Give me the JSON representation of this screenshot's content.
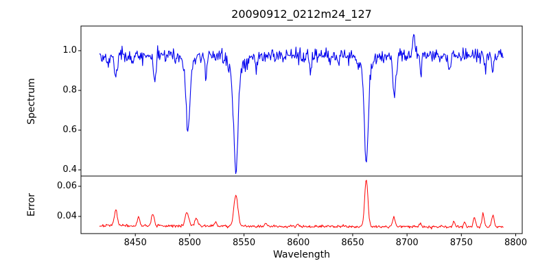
{
  "figure": {
    "title": "20090912_0212m24_127",
    "background": "#ffffff",
    "frame_color": "#000000"
  },
  "chart_data": {
    "type": "line",
    "title": "20090912_0212m24_127",
    "xlabel": "Wavelength",
    "xlim": [
      8400,
      8806
    ],
    "x_ticks": {
      "values": [
        8450,
        8500,
        8550,
        8600,
        8650,
        8700,
        8750,
        8800
      ],
      "labels": [
        "8450",
        "8500",
        "8550",
        "8600",
        "8650",
        "8700",
        "8750",
        "8800"
      ]
    },
    "grid": false,
    "legend": "none",
    "panels": [
      {
        "name": "spectrum",
        "ylabel": "Spectrum",
        "ylim": [
          0.369,
          1.124
        ],
        "y_ticks": {
          "values": [
            0.4,
            0.6,
            0.8,
            1.0
          ],
          "labels": [
            "0.4",
            "0.6",
            "0.8",
            "1.0"
          ]
        },
        "line_color": "#0000ee",
        "series": {
          "x_start": 8417,
          "x_end": 8789,
          "x_step": 0.63,
          "continuum": 0.975,
          "noise_sigma": 0.018,
          "seed": 42,
          "absorption_features_center_depth_sigma": [
            [
              8425.0,
              0.06,
              1.0
            ],
            [
              8432.0,
              0.1,
              1.2
            ],
            [
              8448.0,
              0.06,
              1.0
            ],
            [
              8468.0,
              0.13,
              1.2
            ],
            [
              8498.5,
              0.33,
              1.7
            ],
            [
              8498.5,
              0.05,
              5.0
            ],
            [
              8515.0,
              0.1,
              1.1
            ],
            [
              8542.5,
              0.5,
              2.0
            ],
            [
              8542.5,
              0.07,
              7.0
            ],
            [
              8561.0,
              0.07,
              0.9
            ],
            [
              8611.0,
              0.07,
              0.9
            ],
            [
              8637.0,
              0.06,
              0.9
            ],
            [
              8662.5,
              0.47,
              1.8
            ],
            [
              8662.5,
              0.06,
              6.0
            ],
            [
              8688.5,
              0.2,
              1.4
            ],
            [
              8706.5,
              -0.11,
              0.9
            ],
            [
              8713.0,
              0.08,
              0.9
            ],
            [
              8739.0,
              0.08,
              1.0
            ],
            [
              8772.0,
              0.06,
              0.9
            ],
            [
              8779.0,
              0.07,
              0.9
            ]
          ],
          "key_line_minima": {
            "8498": 0.59,
            "8542": 0.41,
            "8662": 0.44,
            "8688": 0.76
          }
        }
      },
      {
        "name": "error",
        "ylabel": "Error",
        "ylim": [
          0.0286,
          0.0668
        ],
        "y_ticks": {
          "values": [
            0.04,
            0.06
          ],
          "labels": [
            "0.04",
            "0.06"
          ]
        },
        "line_color": "#ff0000",
        "series": {
          "x_start": 8417,
          "x_end": 8789,
          "x_step": 0.63,
          "baseline_start": 0.0338,
          "baseline_end": 0.033,
          "noise_sigma": 0.00045,
          "seed": 7,
          "peaks_center_height_sigma": [
            [
              8432.0,
              0.011,
              1.3
            ],
            [
              8453.0,
              0.0062,
              1.0
            ],
            [
              8466.0,
              0.0085,
              1.2
            ],
            [
              8497.5,
              0.0085,
              1.8
            ],
            [
              8506.0,
              0.0045,
              1.5
            ],
            [
              8524.0,
              0.0028,
              1.0
            ],
            [
              8542.5,
              0.0205,
              1.9
            ],
            [
              8570.0,
              0.0018,
              1.0
            ],
            [
              8600.0,
              0.0015,
              1.0
            ],
            [
              8662.5,
              0.0315,
              1.5
            ],
            [
              8688.0,
              0.0062,
              1.2
            ],
            [
              8712.0,
              0.002,
              1.0
            ],
            [
              8743.0,
              0.0035,
              1.0
            ],
            [
              8753.0,
              0.003,
              1.0
            ],
            [
              8762.0,
              0.0065,
              1.1
            ],
            [
              8770.0,
              0.0085,
              1.0
            ],
            [
              8779.0,
              0.008,
              1.1
            ]
          ],
          "key_peak_maxima": {
            "8432": 0.045,
            "8542": 0.054,
            "8662": 0.065
          }
        }
      }
    ]
  }
}
